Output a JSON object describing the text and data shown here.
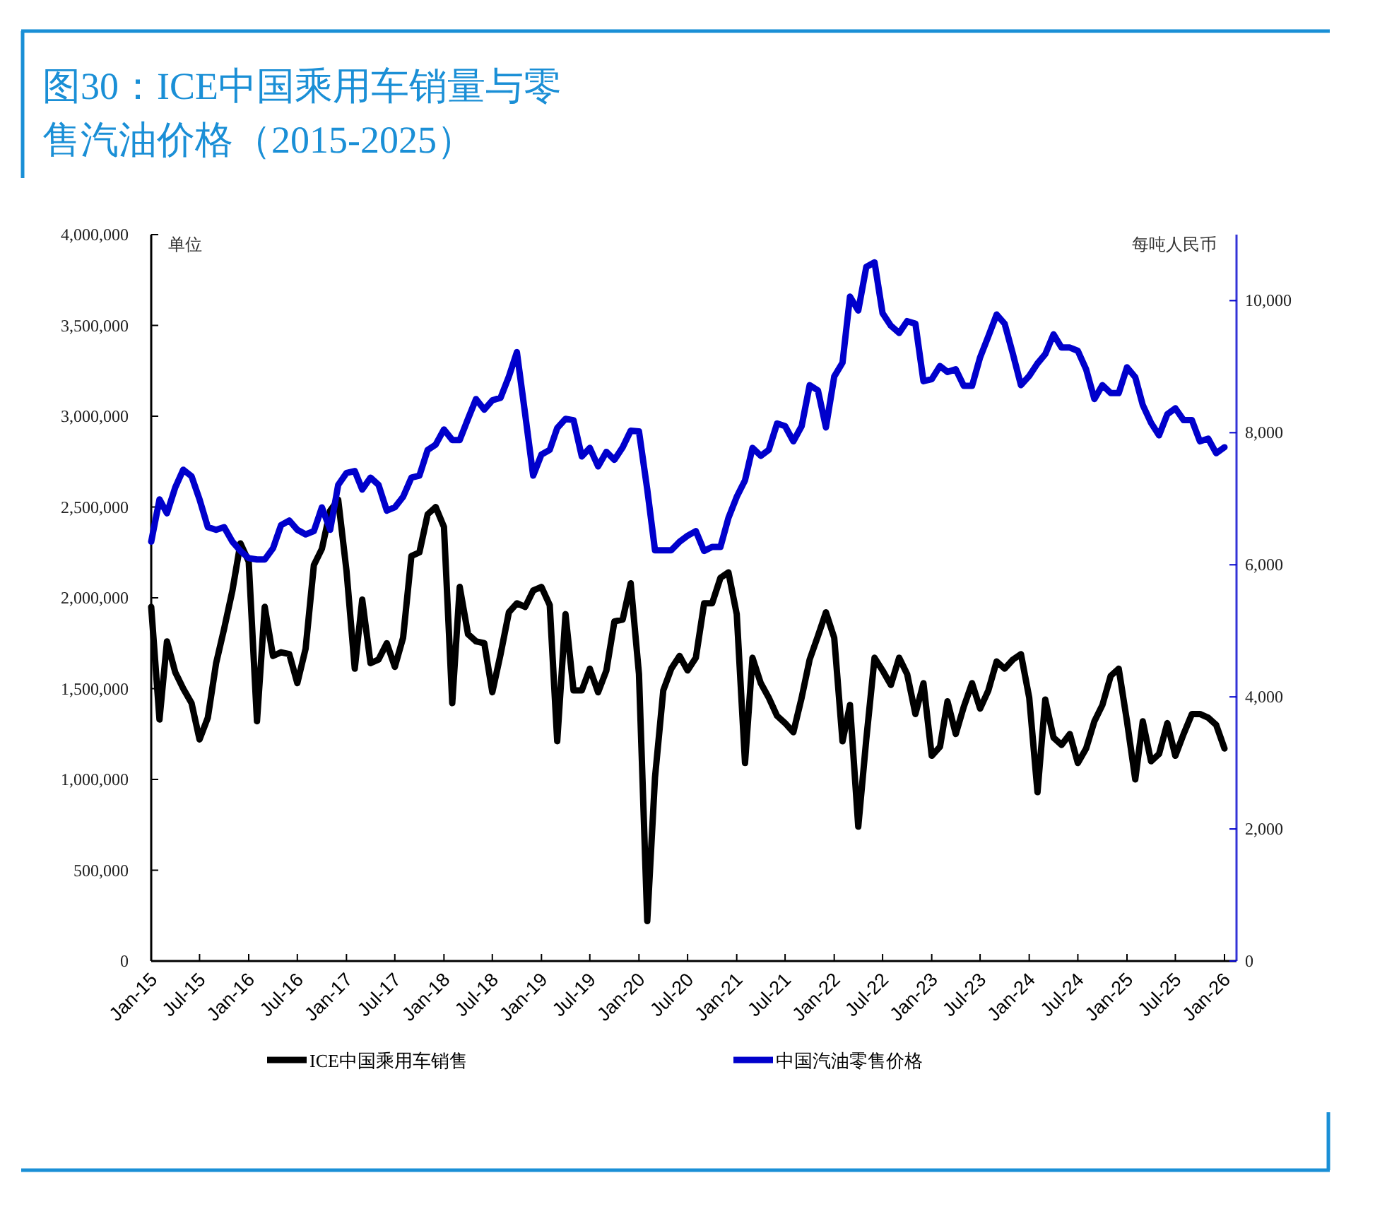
{
  "chart_data": {
    "type": "line",
    "title": "图30：ICE中国乘用车销量与零售汽油价格（2015-2025）",
    "ylabel": "单位",
    "y2label": "每吨人民币",
    "x": [
      "2015-01",
      "2015-02",
      "2015-03",
      "2015-04",
      "2015-05",
      "2015-06",
      "2015-07",
      "2015-08",
      "2015-09",
      "2015-10",
      "2015-11",
      "2015-12",
      "2016-01",
      "2016-02",
      "2016-03",
      "2016-04",
      "2016-05",
      "2016-06",
      "2016-07",
      "2016-08",
      "2016-09",
      "2016-10",
      "2016-11",
      "2016-12",
      "2017-01",
      "2017-02",
      "2017-03",
      "2017-04",
      "2017-05",
      "2017-06",
      "2017-07",
      "2017-08",
      "2017-09",
      "2017-10",
      "2017-11",
      "2017-12",
      "2018-01",
      "2018-02",
      "2018-03",
      "2018-04",
      "2018-05",
      "2018-06",
      "2018-07",
      "2018-08",
      "2018-09",
      "2018-10",
      "2018-11",
      "2018-12",
      "2019-01",
      "2019-02",
      "2019-03",
      "2019-04",
      "2019-05",
      "2019-06",
      "2019-07",
      "2019-08",
      "2019-09",
      "2019-10",
      "2019-11",
      "2019-12",
      "2020-01",
      "2020-02",
      "2020-03",
      "2020-04",
      "2020-05",
      "2020-06",
      "2020-07",
      "2020-08",
      "2020-09",
      "2020-10",
      "2020-11",
      "2020-12",
      "2021-01",
      "2021-02",
      "2021-03",
      "2021-04",
      "2021-05",
      "2021-06",
      "2021-07",
      "2021-08",
      "2021-09",
      "2021-10",
      "2021-11",
      "2021-12",
      "2022-01",
      "2022-02",
      "2022-03",
      "2022-04",
      "2022-05",
      "2022-06",
      "2022-07",
      "2022-08",
      "2022-09",
      "2022-10",
      "2022-11",
      "2022-12",
      "2023-01",
      "2023-02",
      "2023-03",
      "2023-04",
      "2023-05",
      "2023-06",
      "2023-07",
      "2023-08",
      "2023-09",
      "2023-10",
      "2023-11",
      "2023-12",
      "2024-01",
      "2024-02",
      "2024-03",
      "2024-04",
      "2024-05",
      "2024-06",
      "2024-07",
      "2024-08",
      "2024-09",
      "2024-10",
      "2024-11",
      "2024-12",
      "2025-01",
      "2025-02",
      "2025-03",
      "2025-04",
      "2025-05",
      "2025-06",
      "2025-07",
      "2025-08",
      "2025-09",
      "2025-10",
      "2025-11",
      "2025-12",
      "2026-01"
    ],
    "xlim": [
      "2015-01",
      "2026-02-15"
    ],
    "xticks": [
      {
        "value": "2015-01",
        "label": "Jan-15"
      },
      {
        "value": "2015-07",
        "label": "Jul-15"
      },
      {
        "value": "2016-01",
        "label": "Jan-16"
      },
      {
        "value": "2016-07",
        "label": "Jul-16"
      },
      {
        "value": "2017-01",
        "label": "Jan-17"
      },
      {
        "value": "2017-07",
        "label": "Jul-17"
      },
      {
        "value": "2018-01",
        "label": "Jan-18"
      },
      {
        "value": "2018-07",
        "label": "Jul-18"
      },
      {
        "value": "2019-01",
        "label": "Jan-19"
      },
      {
        "value": "2019-07",
        "label": "Jul-19"
      },
      {
        "value": "2020-01",
        "label": "Jan-20"
      },
      {
        "value": "2020-07",
        "label": "Jul-20"
      },
      {
        "value": "2021-01",
        "label": "Jan-21"
      },
      {
        "value": "2021-07",
        "label": "Jul-21"
      },
      {
        "value": "2022-01",
        "label": "Jan-22"
      },
      {
        "value": "2022-07",
        "label": "Jul-22"
      },
      {
        "value": "2023-01",
        "label": "Jan-23"
      },
      {
        "value": "2023-07",
        "label": "Jul-23"
      },
      {
        "value": "2024-01",
        "label": "Jan-24"
      },
      {
        "value": "2024-07",
        "label": "Jul-24"
      },
      {
        "value": "2025-01",
        "label": "Jan-25"
      },
      {
        "value": "2025-07",
        "label": "Jul-25"
      },
      {
        "value": "2026-01",
        "label": "Jan-26"
      }
    ],
    "ylim": [
      0,
      4000000
    ],
    "yticks": [
      0,
      {
        "value": 500000,
        "label": "500,000"
      },
      {
        "value": 1000000,
        "label": "1,000,000"
      },
      {
        "value": 1500000,
        "label": "1,500,000"
      },
      {
        "value": 2000000,
        "label": "2,000,000"
      },
      {
        "value": 2500000,
        "label": "2,500,000"
      },
      {
        "value": 3000000,
        "label": "3,000,000"
      },
      {
        "value": 3500000,
        "label": "3,500,000"
      },
      {
        "value": 4000000,
        "label": "4,000,000"
      }
    ],
    "y2lim": [
      0,
      11000
    ],
    "y2ticks": [
      0,
      {
        "value": 2000,
        "label": "2,000"
      },
      {
        "value": 4000,
        "label": "4,000"
      },
      {
        "value": 6000,
        "label": "6,000"
      },
      {
        "value": 8000,
        "label": "8,000"
      },
      {
        "value": 10000,
        "label": "10,000"
      }
    ],
    "legend": "bottom",
    "series": [
      {
        "name": "ICE中国乘用车销售",
        "color": "#000000",
        "values": [
          1950000,
          1330000,
          1760000,
          1590000,
          1500000,
          1420000,
          1220000,
          1340000,
          1640000,
          1830000,
          2040000,
          2300000,
          2200000,
          1320000,
          1950000,
          1680000,
          1700000,
          1690000,
          1530000,
          1720000,
          2180000,
          2270000,
          2480000,
          2540000,
          2150000,
          1610000,
          1990000,
          1640000,
          1660000,
          1750000,
          1620000,
          1780000,
          2230000,
          2250000,
          2460000,
          2500000,
          2390000,
          1420000,
          2060000,
          1800000,
          1760000,
          1750000,
          1480000,
          1690000,
          1920000,
          1970000,
          1950000,
          2040000,
          2060000,
          1960000,
          1210000,
          1910000,
          1490000,
          1490000,
          1610000,
          1480000,
          1600000,
          1870000,
          1880000,
          2080000,
          1580000,
          220000,
          1010000,
          1490000,
          1610000,
          1680000,
          1600000,
          1670000,
          1970000,
          1970000,
          2110000,
          2140000,
          1910000,
          1090000,
          1670000,
          1530000,
          1450000,
          1350000,
          1310000,
          1260000,
          1450000,
          1660000,
          1790000,
          1920000,
          1780000,
          1210000,
          1410000,
          740000,
          1220000,
          1670000,
          1600000,
          1520000,
          1670000,
          1580000,
          1360000,
          1530000,
          1130000,
          1180000,
          1430000,
          1250000,
          1400000,
          1530000,
          1390000,
          1490000,
          1650000,
          1610000,
          1660000,
          1690000,
          1450000,
          930000,
          1440000,
          1230000,
          1190000,
          1250000,
          1090000,
          1170000,
          1320000,
          1410000,
          1570000,
          1610000,
          1320000,
          1000000,
          1320000,
          1100000,
          1140000,
          1310000,
          1130000,
          1250000,
          1360000,
          1360000,
          1340000,
          1300000,
          1170000
        ]
      },
      {
        "name": "中国汽油零售价格",
        "color": "#0000cc",
        "axis": "y2",
        "values": [
          6350,
          6990,
          6780,
          7170,
          7440,
          7340,
          6990,
          6570,
          6530,
          6570,
          6350,
          6210,
          6100,
          6080,
          6080,
          6250,
          6600,
          6670,
          6530,
          6460,
          6510,
          6870,
          6530,
          7210,
          7390,
          7420,
          7140,
          7320,
          7210,
          6820,
          6870,
          7030,
          7320,
          7350,
          7740,
          7820,
          8050,
          7890,
          7890,
          8210,
          8510,
          8350,
          8490,
          8530,
          8850,
          9220,
          8280,
          7350,
          7670,
          7740,
          8070,
          8210,
          8190,
          7640,
          7770,
          7490,
          7710,
          7590,
          7780,
          8030,
          8020,
          7140,
          6220,
          6220,
          6220,
          6350,
          6440,
          6510,
          6210,
          6270,
          6270,
          6710,
          7030,
          7280,
          7770,
          7650,
          7740,
          8140,
          8100,
          7870,
          8100,
          8720,
          8640,
          8080,
          8850,
          9060,
          10060,
          9850,
          10510,
          10580,
          9810,
          9620,
          9510,
          9690,
          9650,
          8780,
          8810,
          9010,
          8920,
          8960,
          8710,
          8710,
          9140,
          9460,
          9790,
          9650,
          9190,
          8720,
          8860,
          9050,
          9190,
          9490,
          9290,
          9290,
          9240,
          8960,
          8510,
          8720,
          8600,
          8600,
          8990,
          8840,
          8420,
          8150,
          7960,
          8280,
          8370,
          8190,
          8190,
          7870,
          7910,
          7690,
          7780
        ]
      }
    ]
  }
}
